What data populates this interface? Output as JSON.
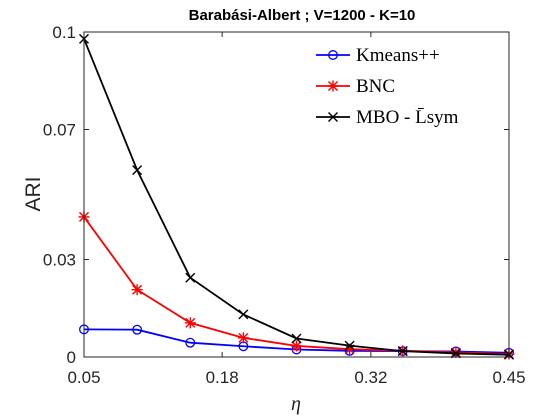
{
  "chart_data": {
    "type": "line",
    "title": "Barabási-Albert ; V=1200 - K=10",
    "xlabel": "η",
    "ylabel": "ARI",
    "xlim": [
      0.05,
      0.45
    ],
    "ylim": [
      0,
      0.1
    ],
    "xticks": [
      0.05,
      0.18,
      0.32,
      0.45
    ],
    "xtick_labels": [
      "0.05",
      "0.18",
      "0.32",
      "0.45"
    ],
    "yticks": [
      0,
      0.03,
      0.07,
      0.1
    ],
    "ytick_labels": [
      "0",
      "0.03",
      "0.07",
      "0.1"
    ],
    "grid": false,
    "legend_position": "top-right",
    "x": [
      0.05,
      0.1,
      0.15,
      0.2,
      0.25,
      0.3,
      0.35,
      0.4,
      0.45
    ],
    "series": [
      {
        "name": "Kmeans++",
        "color": "#0000ff",
        "marker": "circle",
        "values": [
          0.0085,
          0.0084,
          0.0044,
          0.0033,
          0.0023,
          0.0019,
          0.0018,
          0.0017,
          0.0013
        ]
      },
      {
        "name": "BNC",
        "color": "#ff0000",
        "marker": "asterisk",
        "values": [
          0.0431,
          0.0207,
          0.0105,
          0.0059,
          0.0034,
          0.0024,
          0.0019,
          0.0014,
          0.0009
        ]
      },
      {
        "name": "MBO - L̄sym",
        "color": "#000000",
        "marker": "x",
        "values": [
          0.0979,
          0.0575,
          0.0244,
          0.0131,
          0.0057,
          0.0035,
          0.0018,
          0.0011,
          0.0007
        ]
      }
    ]
  }
}
